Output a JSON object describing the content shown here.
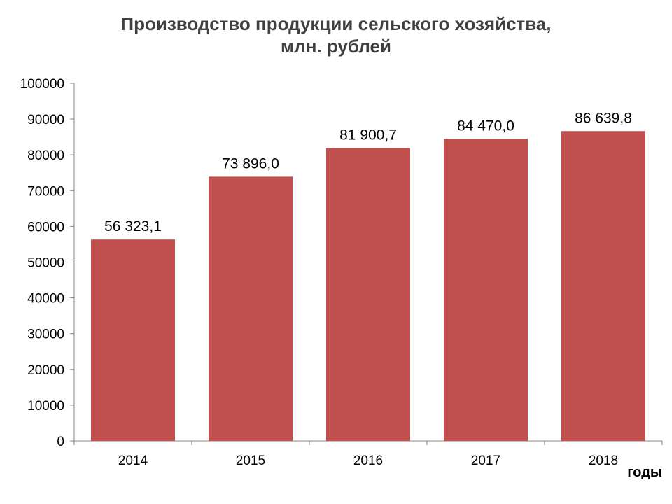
{
  "chart_data": {
    "type": "bar",
    "title_line1": "Производство продукции сельского хозяйства,",
    "title_line2": "млн. рублей",
    "xlabel": "годы",
    "ylabel": "",
    "categories": [
      "2014",
      "2015",
      "2016",
      "2017",
      "2018"
    ],
    "values": [
      56323.1,
      73896.0,
      81900.7,
      84470.0,
      86639.8
    ],
    "value_labels": [
      "56 323,1",
      "73 896,0",
      "81 900,7",
      "84 470,0",
      "86 639,8"
    ],
    "ylim": [
      0,
      100000
    ],
    "yticks": [
      "0",
      "10000",
      "20000",
      "30000",
      "40000",
      "50000",
      "60000",
      "70000",
      "80000",
      "90000",
      "100000"
    ],
    "bar_color": "#C0504D",
    "grid": false,
    "legend": "none"
  }
}
